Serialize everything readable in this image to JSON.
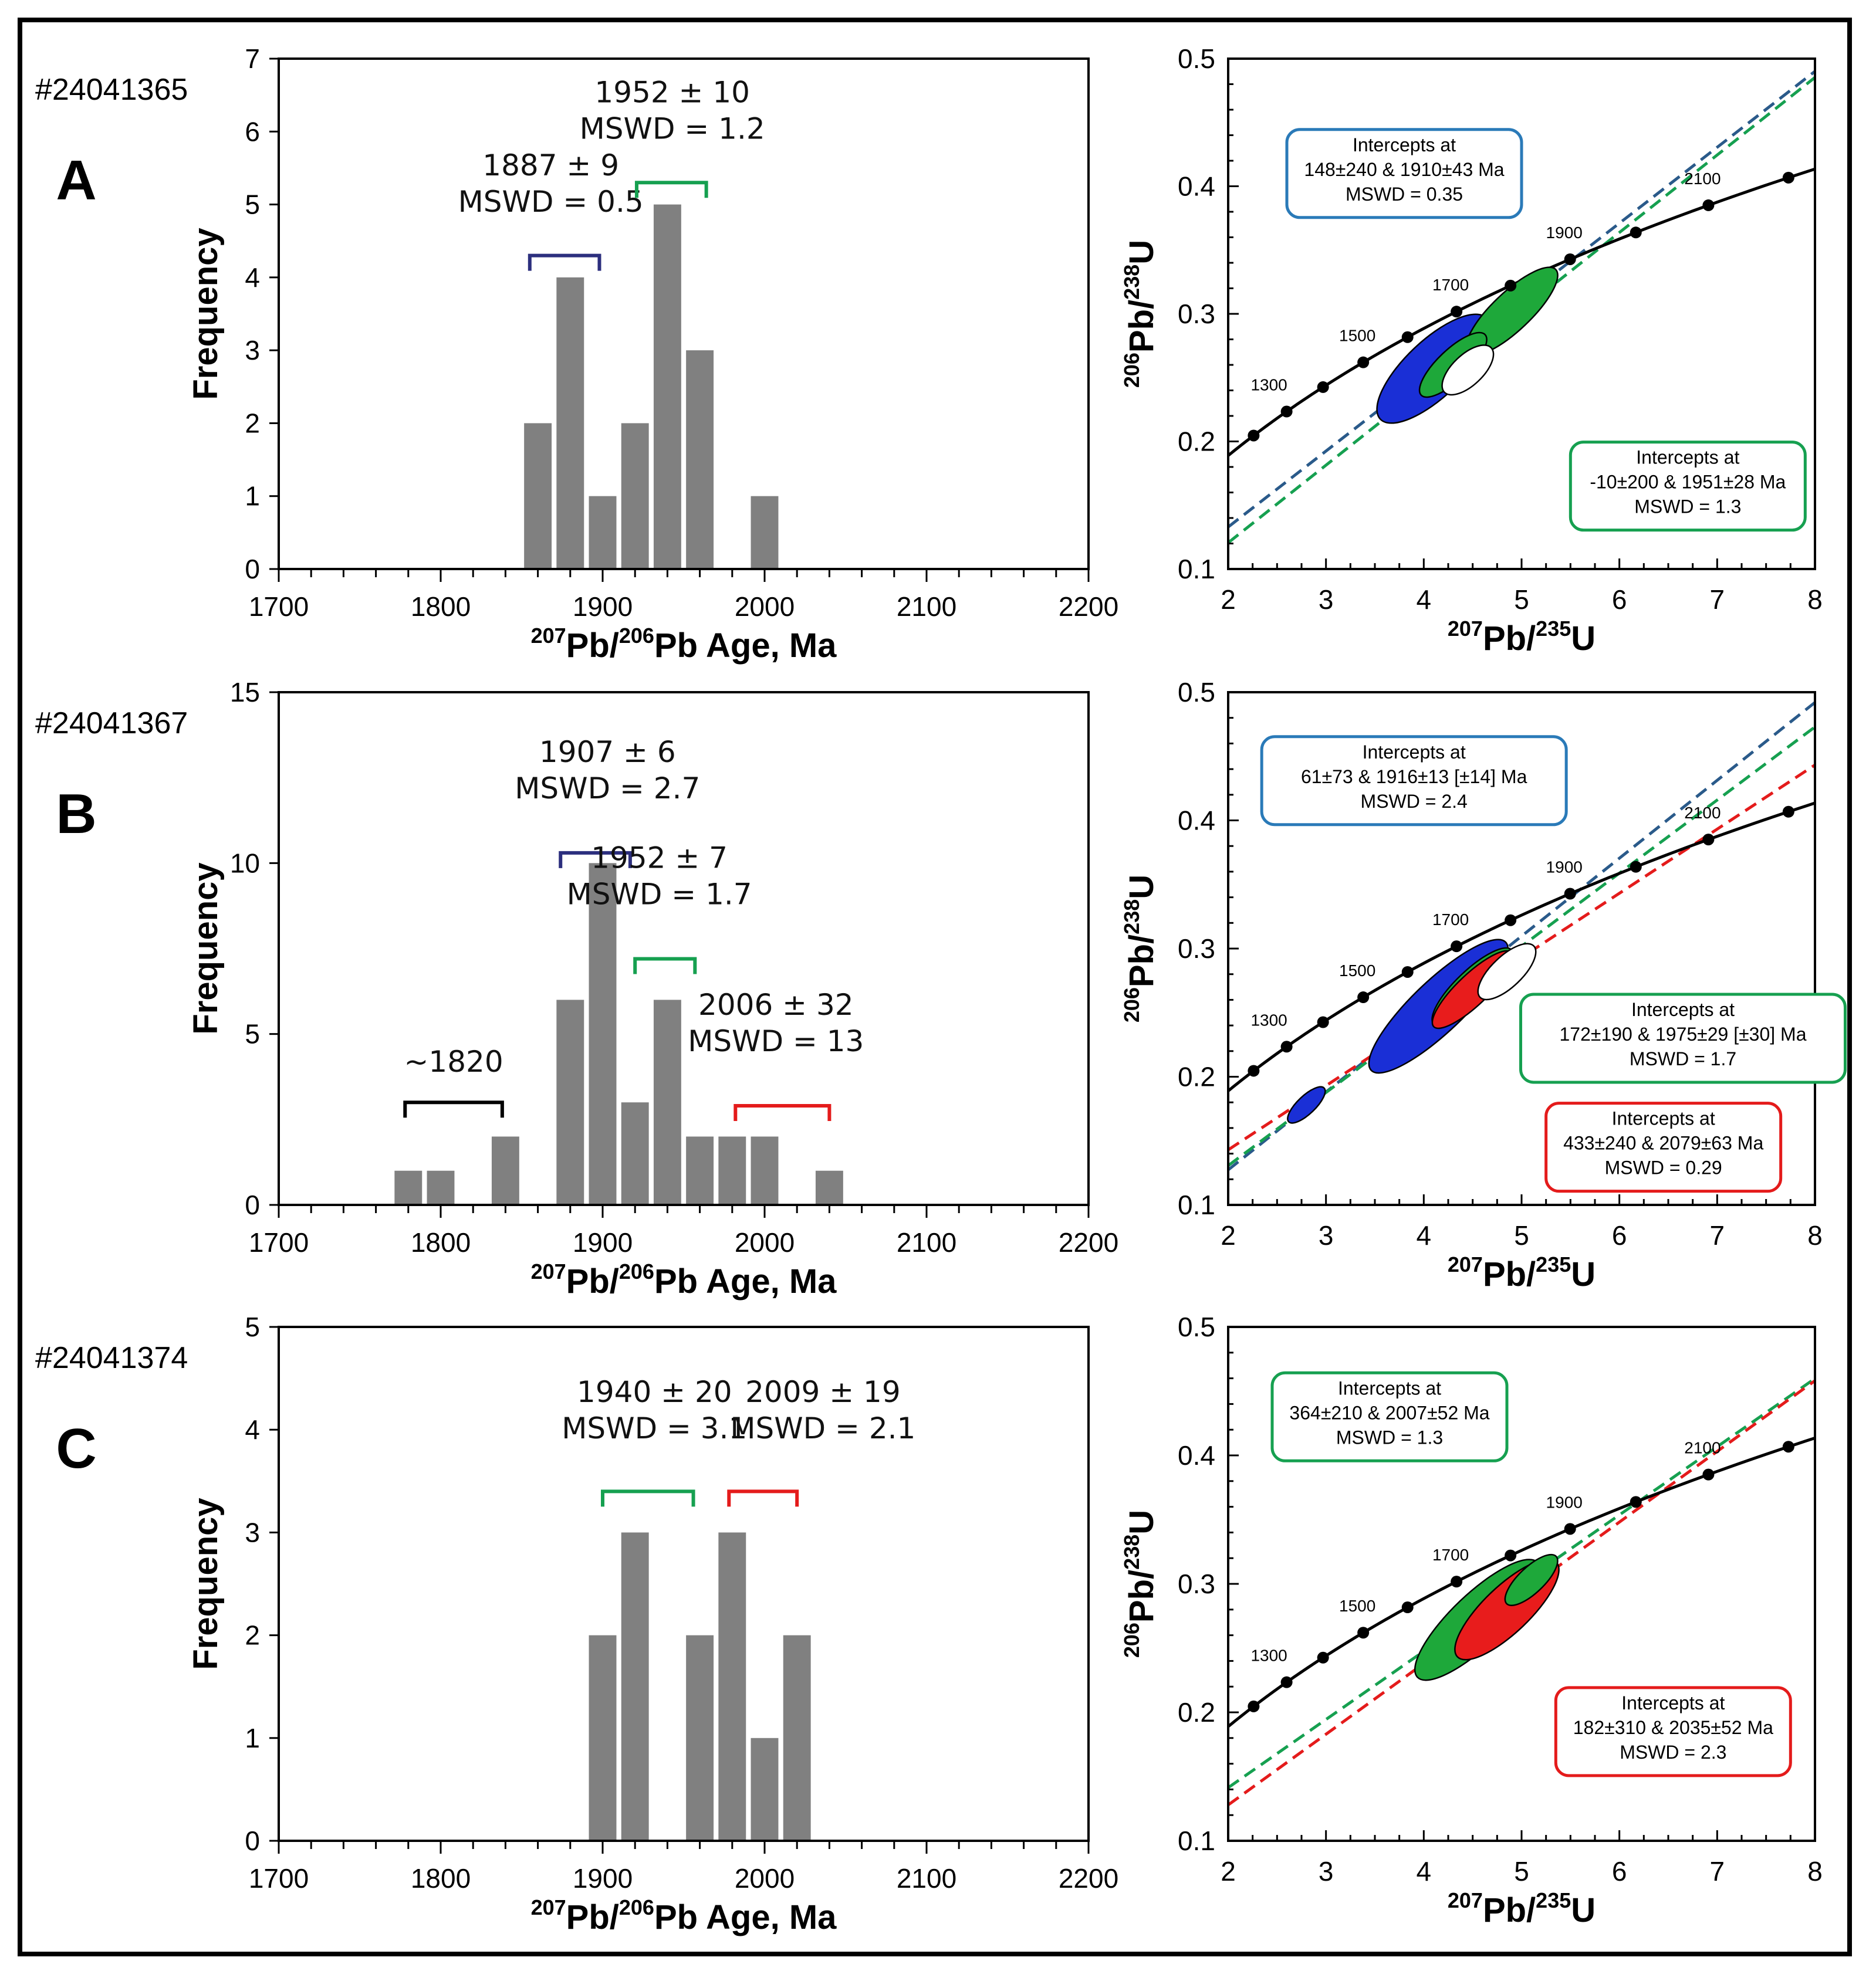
{
  "figure": {
    "colors": {
      "bar": "#808080",
      "blue": "#2c2f7e",
      "green": "#16a050",
      "red": "#e41b1b",
      "black": "#000000",
      "boxBlue": "#2a7ab8",
      "boxGreen": "#16a050",
      "boxRed": "#e41b1b",
      "ellBlue": "#1a2fd6",
      "ellGreen": "#1ea83a",
      "ellRed": "#e81c1c"
    }
  },
  "chart_data": [
    {
      "panel": "A",
      "sample_id": "#24041365",
      "type": "bar",
      "xlabel_pre": "207",
      "xlabel_mid": "Pb/",
      "xlabel_sup2": "206",
      "xlabel_post": "Pb Age, Ma",
      "ylabel": "Frequency",
      "xlim": [
        1700,
        2200
      ],
      "ylim": [
        0,
        7
      ],
      "xticks": [
        1700,
        1800,
        1900,
        2000,
        2100,
        2200
      ],
      "yticks": [
        0,
        1,
        2,
        3,
        4,
        5,
        6,
        7
      ],
      "bin_width": 20,
      "bins": [
        {
          "x": 1860,
          "y": 2
        },
        {
          "x": 1880,
          "y": 4
        },
        {
          "x": 1900,
          "y": 1
        },
        {
          "x": 1920,
          "y": 2
        },
        {
          "x": 1940,
          "y": 5
        },
        {
          "x": 1960,
          "y": 3
        },
        {
          "x": 2000,
          "y": 1
        }
      ],
      "annotations": [
        {
          "line1": "1887 ± 9",
          "line2": "MSWD = 0.5",
          "color": "blue",
          "x0": 1855,
          "x1": 1898,
          "level": 4.3,
          "tx": 1868,
          "ty": 4.95
        },
        {
          "line1": "1952 ± 10",
          "line2": "MSWD = 1.2",
          "color": "green",
          "x0": 1921,
          "x1": 1964,
          "level": 5.3,
          "tx": 1943,
          "ty": 5.95
        }
      ]
    },
    {
      "panel": "A",
      "type": "line",
      "xlabel_pre": "207",
      "xlabel_mid": "Pb/",
      "xlabel_sup2": "235",
      "xlabel_post": "U",
      "ylabel_pre": "206",
      "ylabel_mid": "Pb/",
      "ylabel_sup2": "238",
      "ylabel_post": "U",
      "xlim": [
        2,
        8
      ],
      "ylim": [
        0.1,
        0.5
      ],
      "xticks": [
        2,
        3,
        4,
        5,
        6,
        7,
        8
      ],
      "yticks": [
        0.1,
        0.2,
        0.3,
        0.4,
        0.5
      ],
      "age_labels": [
        "1300",
        "1500",
        "1700",
        "1900",
        "2100"
      ],
      "discordia": [
        {
          "color": "blue",
          "intercepts": [
            148,
            1910
          ]
        },
        {
          "color": "green",
          "intercepts": [
            -10,
            1951
          ]
        }
      ],
      "ellipses": [
        {
          "color": "ellBlue",
          "cx": 4.1,
          "cy": 0.257,
          "rx": 0.75,
          "ry": 0.022
        },
        {
          "color": "ellGreen",
          "cx": 4.9,
          "cy": 0.302,
          "rx": 0.62,
          "ry": 0.015
        },
        {
          "color": "ellGreen",
          "cx": 4.3,
          "cy": 0.26,
          "rx": 0.45,
          "ry": 0.012
        },
        {
          "color": "white",
          "cx": 4.45,
          "cy": 0.256,
          "rx": 0.33,
          "ry": 0.012
        }
      ],
      "boxes": [
        {
          "color": "boxBlue",
          "lines": [
            "Intercepts at",
            "148±240 & 1910±43 Ma",
            "MSWD = 0.35"
          ],
          "cx": 3.8,
          "cy": 0.41
        },
        {
          "color": "boxGreen",
          "lines": [
            "Intercepts at",
            "-10±200 & 1951±28 Ma",
            "MSWD = 1.3"
          ],
          "cx": 6.7,
          "cy": 0.165
        }
      ]
    },
    {
      "panel": "B",
      "sample_id": "#24041367",
      "type": "bar",
      "xlabel_pre": "207",
      "xlabel_mid": "Pb/",
      "xlabel_sup2": "206",
      "xlabel_post": "Pb Age, Ma",
      "ylabel": "Frequency",
      "xlim": [
        1700,
        2200
      ],
      "ylim": [
        0,
        15
      ],
      "xticks": [
        1700,
        1800,
        1900,
        2000,
        2100,
        2200
      ],
      "yticks": [
        0,
        5,
        10,
        15
      ],
      "bin_width": 20,
      "bins": [
        {
          "x": 1780,
          "y": 1
        },
        {
          "x": 1800,
          "y": 1
        },
        {
          "x": 1840,
          "y": 2
        },
        {
          "x": 1880,
          "y": 6
        },
        {
          "x": 1900,
          "y": 10
        },
        {
          "x": 1920,
          "y": 3
        },
        {
          "x": 1940,
          "y": 6
        },
        {
          "x": 1960,
          "y": 2
        },
        {
          "x": 1980,
          "y": 2
        },
        {
          "x": 2000,
          "y": 2
        },
        {
          "x": 2040,
          "y": 1
        }
      ],
      "annotations": [
        {
          "line1": "~1820",
          "line2": "",
          "color": "black",
          "x0": 1778,
          "x1": 1838,
          "level": 3.0,
          "tx": 1808,
          "ty": 3.55
        },
        {
          "line1": "1907 ± 6",
          "line2": "MSWD = 2.7",
          "color": "blue",
          "x0": 1874,
          "x1": 1917,
          "level": 10.3,
          "tx": 1903,
          "ty": 12.0
        },
        {
          "line1": "1952 ± 7",
          "line2": "MSWD = 1.7",
          "color": "green",
          "x0": 1920,
          "x1": 1957,
          "level": 7.2,
          "tx": 1935,
          "ty": 8.9
        },
        {
          "line1": "2006 ± 32",
          "line2": "MSWD = 13",
          "color": "red",
          "x0": 1982,
          "x1": 2040,
          "level": 2.9,
          "tx": 2007,
          "ty": 4.6
        }
      ]
    },
    {
      "panel": "B",
      "type": "line",
      "xlabel_pre": "207",
      "xlabel_mid": "Pb/",
      "xlabel_sup2": "235",
      "xlabel_post": "U",
      "ylabel_pre": "206",
      "ylabel_mid": "Pb/",
      "ylabel_sup2": "238",
      "ylabel_post": "U",
      "xlim": [
        2,
        8
      ],
      "ylim": [
        0.1,
        0.5
      ],
      "xticks": [
        2,
        3,
        4,
        5,
        6,
        7,
        8
      ],
      "yticks": [
        0.1,
        0.2,
        0.3,
        0.4,
        0.5
      ],
      "age_labels": [
        "1300",
        "1500",
        "1700",
        "1900",
        "2100"
      ],
      "discordia": [
        {
          "color": "blue",
          "intercepts": [
            61,
            1916
          ]
        },
        {
          "color": "green",
          "intercepts": [
            172,
            1975
          ]
        },
        {
          "color": "red",
          "intercepts": [
            433,
            2079
          ]
        }
      ],
      "ellipses": [
        {
          "color": "ellBlue",
          "cx": 4.15,
          "cy": 0.255,
          "rx": 0.95,
          "ry": 0.02
        },
        {
          "color": "ellBlue",
          "cx": 2.8,
          "cy": 0.178,
          "rx": 0.25,
          "ry": 0.007
        },
        {
          "color": "ellGreen",
          "cx": 4.5,
          "cy": 0.27,
          "rx": 0.55,
          "ry": 0.013
        },
        {
          "color": "ellRed",
          "cx": 4.5,
          "cy": 0.268,
          "rx": 0.55,
          "ry": 0.012
        },
        {
          "color": "white",
          "cx": 4.85,
          "cy": 0.282,
          "rx": 0.38,
          "ry": 0.012
        }
      ],
      "boxes": [
        {
          "color": "boxBlue",
          "lines": [
            "Intercepts at",
            "61±73 & 1916±13   [±14]  Ma",
            "MSWD = 2.4"
          ],
          "cx": 3.9,
          "cy": 0.431
        },
        {
          "color": "boxGreen",
          "lines": [
            "Intercepts at",
            "172±190 & 1975±29   [±30]  Ma",
            "MSWD = 1.7"
          ],
          "cx": 6.65,
          "cy": 0.23
        },
        {
          "color": "boxRed",
          "lines": [
            "Intercepts at",
            "433±240 & 2079±63 Ma",
            "MSWD = 0.29"
          ],
          "cx": 6.45,
          "cy": 0.145
        }
      ]
    },
    {
      "panel": "C",
      "sample_id": "#24041374",
      "type": "bar",
      "xlabel_pre": "207",
      "xlabel_mid": "Pb/",
      "xlabel_sup2": "206",
      "xlabel_post": "Pb Age, Ma",
      "ylabel": "Frequency",
      "xlim": [
        1700,
        2200
      ],
      "ylim": [
        0,
        5
      ],
      "xticks": [
        1700,
        1800,
        1900,
        2000,
        2100,
        2200
      ],
      "yticks": [
        0,
        1,
        2,
        3,
        4,
        5
      ],
      "bin_width": 20,
      "bins": [
        {
          "x": 1900,
          "y": 2
        },
        {
          "x": 1920,
          "y": 3
        },
        {
          "x": 1960,
          "y": 2
        },
        {
          "x": 1980,
          "y": 3
        },
        {
          "x": 2000,
          "y": 1
        },
        {
          "x": 2020,
          "y": 2
        }
      ],
      "annotations": [
        {
          "line1": "1940 ± 20",
          "line2": "MSWD = 3.1",
          "color": "green",
          "x0": 1900,
          "x1": 1956,
          "level": 3.4,
          "tx": 1932,
          "ty": 3.95
        },
        {
          "line1": "2009 ± 19",
          "line2": "MSWD = 2.1",
          "color": "red",
          "x0": 1978,
          "x1": 2020,
          "level": 3.4,
          "tx": 2036,
          "ty": 3.95
        }
      ]
    },
    {
      "panel": "C",
      "type": "line",
      "xlabel_pre": "207",
      "xlabel_mid": "Pb/",
      "xlabel_sup2": "235",
      "xlabel_post": "U",
      "ylabel_pre": "206",
      "ylabel_mid": "Pb/",
      "ylabel_sup2": "238",
      "ylabel_post": "U",
      "xlim": [
        2,
        8
      ],
      "ylim": [
        0.1,
        0.5
      ],
      "xticks": [
        2,
        3,
        4,
        5,
        6,
        7,
        8
      ],
      "yticks": [
        0.1,
        0.2,
        0.3,
        0.4,
        0.5
      ],
      "age_labels": [
        "1300",
        "1500",
        "1700",
        "1900",
        "2100"
      ],
      "discordia": [
        {
          "color": "green",
          "intercepts": [
            364,
            2007
          ]
        },
        {
          "color": "red",
          "intercepts": [
            182,
            2035
          ]
        }
      ],
      "ellipses": [
        {
          "color": "ellGreen",
          "cx": 4.55,
          "cy": 0.272,
          "rx": 0.85,
          "ry": 0.02
        },
        {
          "color": "ellRed",
          "cx": 4.85,
          "cy": 0.28,
          "rx": 0.7,
          "ry": 0.018
        },
        {
          "color": "ellGreen",
          "cx": 5.1,
          "cy": 0.303,
          "rx": 0.35,
          "ry": 0.01
        }
      ],
      "boxes": [
        {
          "color": "boxGreen",
          "lines": [
            "Intercepts at",
            "364±210 & 2007±52 Ma",
            "MSWD = 1.3"
          ],
          "cx": 3.65,
          "cy": 0.43
        },
        {
          "color": "boxRed",
          "lines": [
            "Intercepts at",
            "182±310 & 2035±52 Ma",
            "MSWD = 2.3"
          ],
          "cx": 6.55,
          "cy": 0.185
        }
      ]
    }
  ]
}
